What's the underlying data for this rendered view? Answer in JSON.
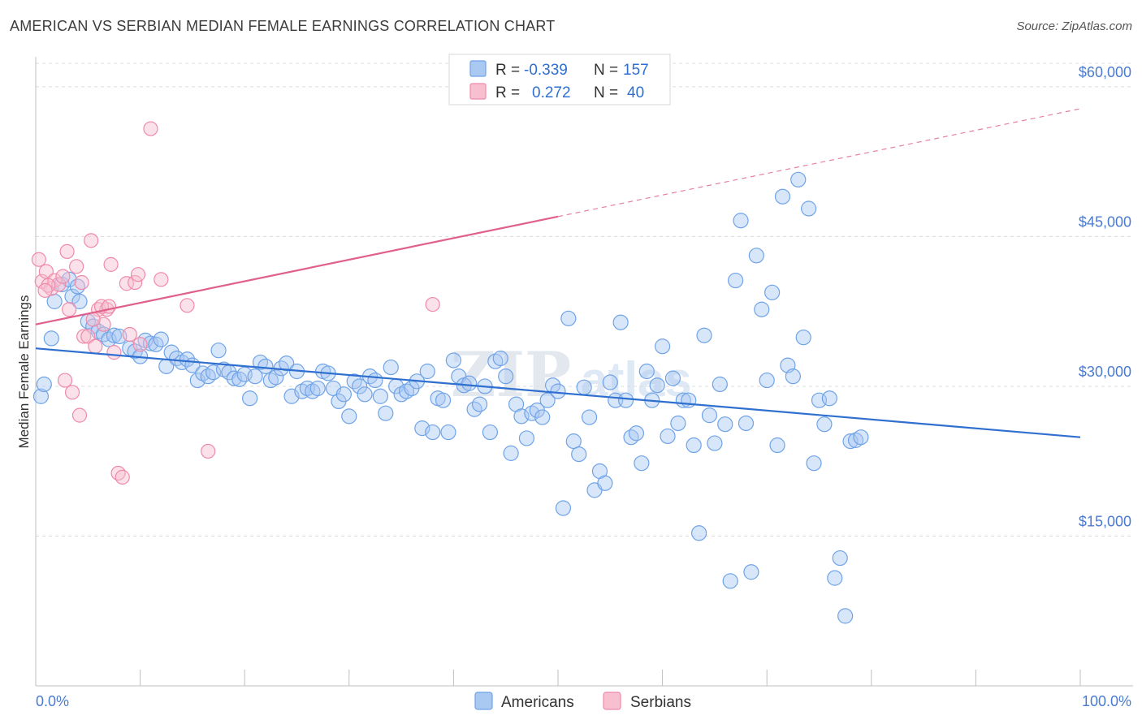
{
  "title": "AMERICAN VS SERBIAN MEDIAN FEMALE EARNINGS CORRELATION CHART",
  "source": "Source: ZipAtlas.com",
  "watermark": {
    "zip": "ZIP",
    "atlas": "atlas"
  },
  "colors": {
    "american": "#6fa3e8",
    "american_fill": "#a9c8f2",
    "american_line": "#2f6fd0",
    "serbian": "#f08aaa",
    "serbian_fill": "#f7bfd0",
    "serbian_line": "#e0608a",
    "tick": "#4a7bd0"
  },
  "stats": [
    {
      "r_label": "R =",
      "r_value": "-0.339",
      "n_label": "N =",
      "n_value": "157",
      "series": "american"
    },
    {
      "r_label": "R =",
      "r_value": "0.272",
      "n_label": "N =",
      "n_value": "40",
      "series": "serbian"
    }
  ],
  "chart_data": {
    "type": "scatter",
    "title": "AMERICAN VS SERBIAN MEDIAN FEMALE EARNINGS CORRELATION CHART",
    "xlabel": "",
    "ylabel": "Median Female Earnings",
    "xlim": [
      0,
      100
    ],
    "ylim": [
      0,
      63000
    ],
    "x_tick_labels": [
      "0.0%",
      "100.0%"
    ],
    "y_ticks": [
      15000,
      30000,
      45000,
      60000
    ],
    "y_tick_labels": [
      "$15,000",
      "$30,000",
      "$45,000",
      "$60,000"
    ],
    "grid": true,
    "legend": {
      "placement": "bottom-center",
      "entries": [
        "Americans",
        "Serbians"
      ]
    },
    "series": [
      {
        "name": "Americans",
        "color": "#6fa3e8",
        "trend": {
          "x": [
            0,
            100
          ],
          "y": [
            33800,
            24900
          ],
          "extrapolated_to": 100
        },
        "points": [
          [
            0.5,
            29000
          ],
          [
            0.8,
            30200
          ],
          [
            1.5,
            34800
          ],
          [
            1.8,
            38500
          ],
          [
            2.5,
            40200
          ],
          [
            3.2,
            40700
          ],
          [
            3.5,
            39000
          ],
          [
            4.0,
            40000
          ],
          [
            4.2,
            38500
          ],
          [
            5.0,
            36500
          ],
          [
            5.5,
            36000
          ],
          [
            6.0,
            35500
          ],
          [
            6.5,
            35200
          ],
          [
            7.0,
            34700
          ],
          [
            7.5,
            35100
          ],
          [
            8.0,
            35000
          ],
          [
            9.0,
            33800
          ],
          [
            9.5,
            33500
          ],
          [
            10.0,
            33000
          ],
          [
            10.5,
            34600
          ],
          [
            11.0,
            34300
          ],
          [
            11.5,
            34200
          ],
          [
            12.0,
            34700
          ],
          [
            12.5,
            32000
          ],
          [
            13.0,
            33400
          ],
          [
            13.5,
            32800
          ],
          [
            14.0,
            32400
          ],
          [
            14.5,
            32700
          ],
          [
            15.0,
            32100
          ],
          [
            15.5,
            30600
          ],
          [
            16.0,
            31300
          ],
          [
            16.5,
            31000
          ],
          [
            17.0,
            31400
          ],
          [
            17.5,
            33600
          ],
          [
            18.0,
            31700
          ],
          [
            18.5,
            31400
          ],
          [
            19.0,
            30800
          ],
          [
            19.5,
            30700
          ],
          [
            20.0,
            31200
          ],
          [
            20.5,
            28800
          ],
          [
            21.0,
            31000
          ],
          [
            21.5,
            32400
          ],
          [
            22.0,
            32000
          ],
          [
            22.5,
            30600
          ],
          [
            23.0,
            30900
          ],
          [
            23.5,
            31800
          ],
          [
            24.0,
            32300
          ],
          [
            24.5,
            29000
          ],
          [
            25.0,
            31500
          ],
          [
            25.5,
            29500
          ],
          [
            26.0,
            29800
          ],
          [
            26.5,
            29500
          ],
          [
            27.0,
            29800
          ],
          [
            27.5,
            31500
          ],
          [
            28.0,
            31300
          ],
          [
            28.5,
            29800
          ],
          [
            29.0,
            28500
          ],
          [
            29.5,
            29200
          ],
          [
            30.0,
            27000
          ],
          [
            30.5,
            30500
          ],
          [
            31.0,
            30000
          ],
          [
            31.5,
            29200
          ],
          [
            32.0,
            31000
          ],
          [
            32.5,
            30600
          ],
          [
            33.0,
            29000
          ],
          [
            33.5,
            27300
          ],
          [
            34.0,
            31900
          ],
          [
            34.5,
            30000
          ],
          [
            35.0,
            29200
          ],
          [
            35.5,
            29500
          ],
          [
            36.0,
            29800
          ],
          [
            36.5,
            30500
          ],
          [
            37.0,
            25800
          ],
          [
            37.5,
            31500
          ],
          [
            38.0,
            25400
          ],
          [
            38.5,
            28800
          ],
          [
            39.0,
            28600
          ],
          [
            39.5,
            25400
          ],
          [
            40.0,
            32600
          ],
          [
            40.5,
            31000
          ],
          [
            41.0,
            30100
          ],
          [
            41.5,
            30300
          ],
          [
            42.0,
            27700
          ],
          [
            42.5,
            28200
          ],
          [
            43.0,
            30000
          ],
          [
            43.5,
            25400
          ],
          [
            44.0,
            32500
          ],
          [
            44.5,
            32800
          ],
          [
            45.0,
            31000
          ],
          [
            45.5,
            23300
          ],
          [
            46.0,
            28200
          ],
          [
            46.5,
            27000
          ],
          [
            47.0,
            24800
          ],
          [
            47.5,
            27300
          ],
          [
            48.0,
            27600
          ],
          [
            48.5,
            26900
          ],
          [
            49.0,
            28600
          ],
          [
            49.5,
            30100
          ],
          [
            50.0,
            29500
          ],
          [
            50.5,
            17800
          ],
          [
            51.0,
            36800
          ],
          [
            51.5,
            24500
          ],
          [
            52.0,
            23200
          ],
          [
            52.5,
            29900
          ],
          [
            53.0,
            26900
          ],
          [
            53.5,
            19600
          ],
          [
            54.0,
            21500
          ],
          [
            54.5,
            20300
          ],
          [
            55.0,
            30400
          ],
          [
            55.5,
            28600
          ],
          [
            56.0,
            36400
          ],
          [
            56.5,
            28600
          ],
          [
            57.0,
            24900
          ],
          [
            57.5,
            25300
          ],
          [
            58.0,
            22300
          ],
          [
            58.5,
            31500
          ],
          [
            59.0,
            28600
          ],
          [
            59.5,
            30100
          ],
          [
            60.0,
            34000
          ],
          [
            60.5,
            25000
          ],
          [
            61.0,
            30800
          ],
          [
            61.5,
            26300
          ],
          [
            62.0,
            28600
          ],
          [
            62.5,
            28600
          ],
          [
            63.0,
            24100
          ],
          [
            63.5,
            15300
          ],
          [
            64.0,
            35100
          ],
          [
            64.5,
            27100
          ],
          [
            65.0,
            24300
          ],
          [
            65.5,
            30200
          ],
          [
            66.0,
            26200
          ],
          [
            66.5,
            10500
          ],
          [
            67.0,
            40600
          ],
          [
            67.5,
            46600
          ],
          [
            68.0,
            26300
          ],
          [
            68.5,
            11400
          ],
          [
            69.0,
            43100
          ],
          [
            69.5,
            37700
          ],
          [
            70.0,
            30600
          ],
          [
            70.5,
            39400
          ],
          [
            71.0,
            24100
          ],
          [
            71.5,
            49000
          ],
          [
            72.0,
            32100
          ],
          [
            72.5,
            31000
          ],
          [
            73.0,
            50700
          ],
          [
            73.5,
            34900
          ],
          [
            74.0,
            47800
          ],
          [
            74.5,
            22300
          ],
          [
            75.0,
            28600
          ],
          [
            75.5,
            26200
          ],
          [
            76.0,
            28800
          ],
          [
            76.5,
            10800
          ],
          [
            77.0,
            12800
          ],
          [
            77.5,
            7000
          ],
          [
            78.0,
            24500
          ],
          [
            78.5,
            24600
          ],
          [
            79.0,
            24900
          ]
        ]
      },
      {
        "name": "Serbians",
        "color": "#f08aaa",
        "trend": {
          "x": [
            0,
            100
          ],
          "y": [
            36200,
            57800
          ],
          "solid_until": 50
        },
        "points": [
          [
            0.3,
            42700
          ],
          [
            0.6,
            40500
          ],
          [
            1.0,
            41500
          ],
          [
            1.5,
            39800
          ],
          [
            1.8,
            40600
          ],
          [
            2.2,
            40200
          ],
          [
            2.6,
            41000
          ],
          [
            3.0,
            43500
          ],
          [
            3.2,
            37700
          ],
          [
            3.5,
            29400
          ],
          [
            3.9,
            42000
          ],
          [
            4.2,
            27100
          ],
          [
            4.6,
            35000
          ],
          [
            5.0,
            35000
          ],
          [
            5.3,
            44600
          ],
          [
            5.7,
            34000
          ],
          [
            6.0,
            37700
          ],
          [
            6.5,
            36200
          ],
          [
            6.8,
            37700
          ],
          [
            7.2,
            42200
          ],
          [
            7.5,
            33400
          ],
          [
            7.9,
            21300
          ],
          [
            8.3,
            20900
          ],
          [
            8.7,
            40300
          ],
          [
            9.0,
            35200
          ],
          [
            9.5,
            40400
          ],
          [
            10.0,
            34200
          ],
          [
            11.0,
            55800
          ],
          [
            12.0,
            40700
          ],
          [
            14.5,
            38100
          ],
          [
            16.5,
            23500
          ],
          [
            2.8,
            30600
          ],
          [
            6.3,
            38000
          ],
          [
            4.4,
            40400
          ],
          [
            1.2,
            40100
          ],
          [
            0.9,
            39600
          ],
          [
            5.5,
            36700
          ],
          [
            7.0,
            38000
          ],
          [
            9.8,
            41200
          ],
          [
            38.0,
            38200
          ]
        ]
      }
    ]
  }
}
